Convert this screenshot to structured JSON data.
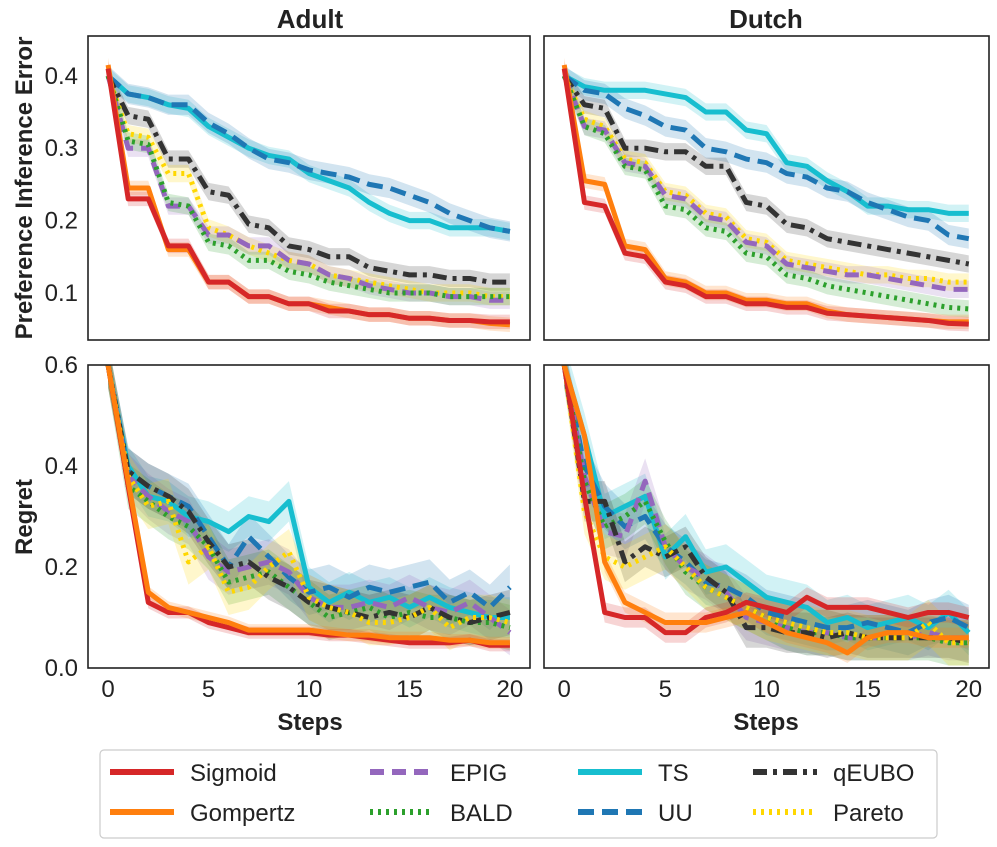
{
  "chart_data": {
    "type": "line",
    "x_axis_label": "Steps",
    "x_ticks": [
      "0",
      "5",
      "10",
      "15",
      "20"
    ],
    "xlim": [
      -1,
      21
    ],
    "columns": [
      "Adult",
      "Dutch"
    ],
    "rows": [
      {
        "ylabel": "Preference Inference Error",
        "ylim": [
          0.035,
          0.455
        ],
        "yticks": [
          {
            "v": 0.1,
            "t": "0.1"
          },
          {
            "v": 0.2,
            "t": "0.2"
          },
          {
            "v": 0.3,
            "t": "0.3"
          },
          {
            "v": 0.4,
            "t": "0.4"
          }
        ]
      },
      {
        "ylabel": "Regret",
        "ylim": [
          0.0,
          0.6
        ],
        "yticks": [
          {
            "v": 0.0,
            "t": "0.0"
          },
          {
            "v": 0.2,
            "t": "0.2"
          },
          {
            "v": 0.4,
            "t": "0.4"
          },
          {
            "v": 0.6,
            "t": "0.6"
          }
        ]
      }
    ],
    "styles": {
      "Sigmoid": {
        "color": "#d62728",
        "dash": "none"
      },
      "Gompertz": {
        "color": "#ff7f0e",
        "dash": "none"
      },
      "EPIG": {
        "color": "#9467bd",
        "dash": "14 8"
      },
      "BALD": {
        "color": "#2ca02c",
        "dash": "3 5"
      },
      "TS": {
        "color": "#17becf",
        "dash": "none"
      },
      "UU": {
        "color": "#1f77b4",
        "dash": "16 8"
      },
      "qEUBO": {
        "color": "#333333",
        "dash": "14 6 4 6"
      },
      "Pareto": {
        "color": "#ffd700",
        "dash": "3 5"
      }
    },
    "legend": {
      "position": "below",
      "entries": [
        [
          "Sigmoid",
          "Gompertz"
        ],
        [
          "EPIG",
          "BALD"
        ],
        [
          "TS",
          "UU"
        ],
        [
          "qEUBO",
          "Pareto"
        ]
      ]
    },
    "panels": [
      {
        "row": 0,
        "col": 0,
        "title": "Adult",
        "series": [
          {
            "name": "TS",
            "band": 0.012,
            "values": [
              0.4,
              0.375,
              0.37,
              0.36,
              0.355,
              0.33,
              0.315,
              0.3,
              0.29,
              0.285,
              0.265,
              0.255,
              0.245,
              0.225,
              0.21,
              0.2,
              0.2,
              0.19,
              0.19,
              0.19,
              0.185
            ]
          },
          {
            "name": "UU",
            "band": 0.014,
            "values": [
              0.4,
              0.375,
              0.37,
              0.36,
              0.36,
              0.335,
              0.32,
              0.3,
              0.285,
              0.28,
              0.27,
              0.265,
              0.26,
              0.25,
              0.245,
              0.235,
              0.225,
              0.21,
              0.2,
              0.19,
              0.185
            ]
          },
          {
            "name": "qEUBO",
            "band": 0.012,
            "values": [
              0.4,
              0.345,
              0.34,
              0.285,
              0.285,
              0.24,
              0.235,
              0.195,
              0.19,
              0.165,
              0.16,
              0.15,
              0.15,
              0.135,
              0.13,
              0.125,
              0.125,
              0.12,
              0.12,
              0.115,
              0.115
            ]
          },
          {
            "name": "Pareto",
            "band": 0.012,
            "values": [
              0.4,
              0.32,
              0.315,
              0.265,
              0.265,
              0.19,
              0.18,
              0.165,
              0.155,
              0.145,
              0.14,
              0.125,
              0.12,
              0.115,
              0.11,
              0.105,
              0.1,
              0.1,
              0.1,
              0.095,
              0.095
            ]
          },
          {
            "name": "EPIG",
            "band": 0.012,
            "values": [
              0.4,
              0.3,
              0.3,
              0.22,
              0.22,
              0.18,
              0.18,
              0.165,
              0.165,
              0.145,
              0.14,
              0.125,
              0.12,
              0.11,
              0.105,
              0.1,
              0.1,
              0.095,
              0.095,
              0.09,
              0.09
            ]
          },
          {
            "name": "BALD",
            "band": 0.012,
            "values": [
              0.4,
              0.31,
              0.305,
              0.225,
              0.22,
              0.17,
              0.165,
              0.145,
              0.145,
              0.13,
              0.125,
              0.115,
              0.11,
              0.105,
              0.1,
              0.1,
              0.1,
              0.095,
              0.095,
              0.095,
              0.095
            ]
          },
          {
            "name": "Gompertz",
            "band": 0.01,
            "values": [
              0.415,
              0.245,
              0.245,
              0.16,
              0.16,
              0.115,
              0.115,
              0.095,
              0.095,
              0.085,
              0.085,
              0.08,
              0.075,
              0.07,
              0.07,
              0.065,
              0.065,
              0.062,
              0.062,
              0.058,
              0.056
            ]
          },
          {
            "name": "Sigmoid",
            "band": 0.01,
            "values": [
              0.41,
              0.23,
              0.23,
              0.165,
              0.165,
              0.115,
              0.115,
              0.095,
              0.095,
              0.085,
              0.085,
              0.075,
              0.075,
              0.07,
              0.07,
              0.065,
              0.065,
              0.062,
              0.062,
              0.06,
              0.06
            ]
          }
        ]
      },
      {
        "row": 0,
        "col": 1,
        "title": "Dutch",
        "series": [
          {
            "name": "TS",
            "band": 0.012,
            "values": [
              0.4,
              0.385,
              0.38,
              0.38,
              0.38,
              0.375,
              0.37,
              0.35,
              0.35,
              0.325,
              0.32,
              0.28,
              0.275,
              0.255,
              0.24,
              0.22,
              0.22,
              0.215,
              0.215,
              0.21,
              0.21
            ]
          },
          {
            "name": "UU",
            "band": 0.014,
            "values": [
              0.4,
              0.38,
              0.375,
              0.355,
              0.345,
              0.33,
              0.325,
              0.3,
              0.295,
              0.285,
              0.28,
              0.265,
              0.26,
              0.245,
              0.24,
              0.225,
              0.215,
              0.205,
              0.2,
              0.18,
              0.175
            ]
          },
          {
            "name": "qEUBO",
            "band": 0.012,
            "values": [
              0.4,
              0.36,
              0.355,
              0.3,
              0.3,
              0.295,
              0.295,
              0.275,
              0.275,
              0.225,
              0.22,
              0.195,
              0.19,
              0.175,
              0.17,
              0.165,
              0.16,
              0.155,
              0.15,
              0.145,
              0.14
            ]
          },
          {
            "name": "Pareto",
            "band": 0.012,
            "values": [
              0.4,
              0.34,
              0.33,
              0.285,
              0.28,
              0.24,
              0.235,
              0.21,
              0.205,
              0.175,
              0.17,
              0.145,
              0.14,
              0.135,
              0.13,
              0.125,
              0.125,
              0.12,
              0.12,
              0.115,
              0.115
            ]
          },
          {
            "name": "EPIG",
            "band": 0.012,
            "values": [
              0.4,
              0.33,
              0.325,
              0.28,
              0.275,
              0.235,
              0.23,
              0.205,
              0.2,
              0.17,
              0.165,
              0.14,
              0.135,
              0.13,
              0.125,
              0.125,
              0.12,
              0.115,
              0.11,
              0.105,
              0.105
            ]
          },
          {
            "name": "BALD",
            "band": 0.012,
            "values": [
              0.4,
              0.33,
              0.32,
              0.275,
              0.27,
              0.22,
              0.215,
              0.19,
              0.185,
              0.155,
              0.15,
              0.125,
              0.12,
              0.11,
              0.105,
              0.1,
              0.095,
              0.09,
              0.085,
              0.08,
              0.078
            ]
          },
          {
            "name": "Gompertz",
            "band": 0.01,
            "values": [
              0.415,
              0.255,
              0.25,
              0.165,
              0.16,
              0.12,
              0.115,
              0.1,
              0.1,
              0.09,
              0.09,
              0.085,
              0.085,
              0.075,
              0.07,
              0.068,
              0.066,
              0.064,
              0.062,
              0.06,
              0.06
            ]
          },
          {
            "name": "Sigmoid",
            "band": 0.01,
            "values": [
              0.41,
              0.225,
              0.22,
              0.155,
              0.15,
              0.115,
              0.11,
              0.095,
              0.095,
              0.085,
              0.085,
              0.08,
              0.08,
              0.072,
              0.07,
              0.068,
              0.066,
              0.064,
              0.062,
              0.058,
              0.057
            ]
          }
        ]
      },
      {
        "row": 1,
        "col": 0,
        "title": "",
        "series": [
          {
            "name": "TS",
            "band": 0.04,
            "values": [
              0.6,
              0.4,
              0.34,
              0.33,
              0.3,
              0.29,
              0.27,
              0.3,
              0.29,
              0.33,
              0.16,
              0.13,
              0.15,
              0.13,
              0.14,
              0.12,
              0.14,
              0.12,
              0.11,
              0.1,
              0.1
            ]
          },
          {
            "name": "UU",
            "band": 0.045,
            "values": [
              0.6,
              0.39,
              0.36,
              0.34,
              0.32,
              0.26,
              0.2,
              0.26,
              0.22,
              0.18,
              0.15,
              0.16,
              0.14,
              0.16,
              0.15,
              0.16,
              0.17,
              0.13,
              0.15,
              0.12,
              0.16
            ]
          },
          {
            "name": "EPIG",
            "band": 0.045,
            "values": [
              0.6,
              0.38,
              0.34,
              0.31,
              0.29,
              0.22,
              0.19,
              0.2,
              0.21,
              0.19,
              0.14,
              0.12,
              0.12,
              0.13,
              0.12,
              0.14,
              0.12,
              0.11,
              0.13,
              0.1,
              0.07
            ]
          },
          {
            "name": "BALD",
            "band": 0.045,
            "values": [
              0.6,
              0.36,
              0.33,
              0.3,
              0.28,
              0.24,
              0.17,
              0.18,
              0.19,
              0.16,
              0.13,
              0.1,
              0.11,
              0.12,
              0.1,
              0.11,
              0.1,
              0.1,
              0.09,
              0.09,
              0.08
            ]
          },
          {
            "name": "qEUBO",
            "band": 0.045,
            "values": [
              0.6,
              0.39,
              0.36,
              0.34,
              0.31,
              0.25,
              0.2,
              0.21,
              0.18,
              0.16,
              0.13,
              0.12,
              0.11,
              0.1,
              0.11,
              0.1,
              0.12,
              0.1,
              0.09,
              0.1,
              0.11
            ]
          },
          {
            "name": "Pareto",
            "band": 0.045,
            "values": [
              0.6,
              0.38,
              0.32,
              0.33,
              0.21,
              0.24,
              0.15,
              0.16,
              0.2,
              0.23,
              0.14,
              0.12,
              0.11,
              0.09,
              0.09,
              0.1,
              0.12,
              0.08,
              0.1,
              0.1,
              0.09
            ]
          },
          {
            "name": "Sigmoid",
            "band": 0.012,
            "values": [
              0.6,
              0.36,
              0.13,
              0.11,
              0.11,
              0.09,
              0.08,
              0.07,
              0.07,
              0.07,
              0.07,
              0.065,
              0.065,
              0.06,
              0.055,
              0.05,
              0.05,
              0.05,
              0.055,
              0.045,
              0.045
            ]
          },
          {
            "name": "Gompertz",
            "band": 0.012,
            "values": [
              0.6,
              0.37,
              0.15,
              0.12,
              0.11,
              0.1,
              0.09,
              0.075,
              0.075,
              0.075,
              0.075,
              0.07,
              0.065,
              0.065,
              0.06,
              0.06,
              0.06,
              0.055,
              0.055,
              0.05,
              0.05
            ]
          }
        ]
      },
      {
        "row": 1,
        "col": 1,
        "title": "",
        "series": [
          {
            "name": "TS",
            "band": 0.045,
            "values": [
              0.6,
              0.46,
              0.3,
              0.32,
              0.34,
              0.22,
              0.26,
              0.19,
              0.2,
              0.17,
              0.14,
              0.13,
              0.12,
              0.09,
              0.1,
              0.08,
              0.09,
              0.1,
              0.08,
              0.11,
              0.07
            ]
          },
          {
            "name": "UU",
            "band": 0.045,
            "values": [
              0.6,
              0.4,
              0.32,
              0.28,
              0.3,
              0.24,
              0.21,
              0.17,
              0.16,
              0.14,
              0.11,
              0.1,
              0.09,
              0.08,
              0.08,
              0.09,
              0.08,
              0.07,
              0.09,
              0.1,
              0.08
            ]
          },
          {
            "name": "EPIG",
            "band": 0.045,
            "values": [
              0.6,
              0.38,
              0.27,
              0.26,
              0.37,
              0.24,
              0.2,
              0.18,
              0.15,
              0.1,
              0.09,
              0.08,
              0.07,
              0.07,
              0.06,
              0.06,
              0.06,
              0.06,
              0.07,
              0.06,
              0.06
            ]
          },
          {
            "name": "BALD",
            "band": 0.045,
            "values": [
              0.6,
              0.37,
              0.28,
              0.3,
              0.33,
              0.25,
              0.19,
              0.16,
              0.14,
              0.12,
              0.1,
              0.08,
              0.07,
              0.07,
              0.06,
              0.06,
              0.06,
              0.06,
              0.06,
              0.05,
              0.05
            ]
          },
          {
            "name": "qEUBO",
            "band": 0.04,
            "values": [
              0.6,
              0.33,
              0.33,
              0.21,
              0.24,
              0.22,
              0.24,
              0.18,
              0.15,
              0.08,
              0.08,
              0.07,
              0.07,
              0.06,
              0.07,
              0.06,
              0.06,
              0.06,
              0.06,
              0.06,
              0.05
            ]
          },
          {
            "name": "Pareto",
            "band": 0.045,
            "values": [
              0.6,
              0.31,
              0.22,
              0.2,
              0.22,
              0.24,
              0.2,
              0.16,
              0.14,
              0.12,
              0.1,
              0.09,
              0.08,
              0.07,
              0.07,
              0.06,
              0.06,
              0.06,
              0.09,
              0.05,
              0.05
            ]
          },
          {
            "name": "Sigmoid",
            "band": 0.02,
            "values": [
              0.6,
              0.34,
              0.11,
              0.1,
              0.1,
              0.07,
              0.07,
              0.1,
              0.11,
              0.13,
              0.12,
              0.11,
              0.14,
              0.12,
              0.12,
              0.12,
              0.11,
              0.1,
              0.11,
              0.11,
              0.1
            ]
          },
          {
            "name": "Gompertz",
            "band": 0.02,
            "values": [
              0.6,
              0.46,
              0.21,
              0.13,
              0.11,
              0.09,
              0.09,
              0.09,
              0.1,
              0.11,
              0.09,
              0.07,
              0.06,
              0.05,
              0.03,
              0.06,
              0.07,
              0.07,
              0.06,
              0.06,
              0.06
            ]
          }
        ]
      }
    ]
  }
}
